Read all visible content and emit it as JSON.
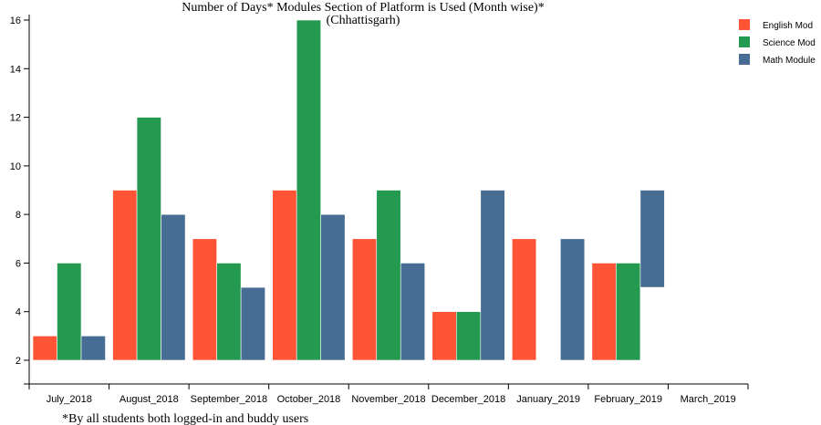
{
  "chart_data": {
    "type": "bar",
    "title": "Number of Days* Modules Section of Platform is Used (Month wise)*",
    "subtitle": "(Chhattisgarh)",
    "footnote": "*By all students both logged-in and buddy users",
    "xlabel": "",
    "ylabel": "",
    "ylim": [
      1.5,
      16
    ],
    "yticks": [
      2,
      4,
      6,
      8,
      10,
      12,
      14,
      16
    ],
    "grid": false,
    "legend_position": "top-right",
    "categories": [
      "July_2018",
      "August_2018",
      "September_2018",
      "October_2018",
      "November_2018",
      "December_2018",
      "January_2019",
      "February_2019",
      "March_2019"
    ],
    "series": [
      {
        "name": "English Mod",
        "color": "#ff5436",
        "values": [
          3,
          9,
          7,
          9,
          7,
          4,
          7,
          6,
          null
        ]
      },
      {
        "name": "Science Mod",
        "color": "#239a4f",
        "values": [
          6,
          12,
          6,
          16,
          9,
          4,
          null,
          6,
          null
        ]
      },
      {
        "name": "Math Module",
        "color": "#476d94",
        "values": [
          3,
          8,
          5,
          8,
          6,
          9,
          7,
          9,
          null
        ]
      }
    ],
    "floating_bars": [
      {
        "category": "February_2019",
        "series": "Math Module",
        "from": 5,
        "to": 9
      }
    ]
  }
}
